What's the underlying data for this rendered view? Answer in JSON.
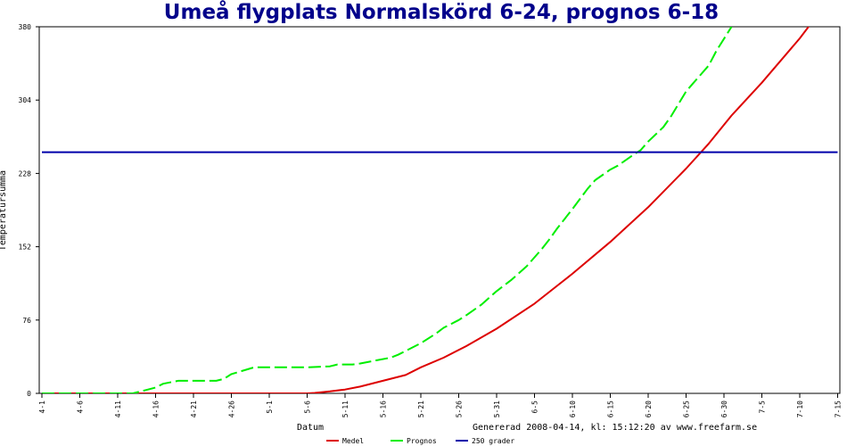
{
  "chart_data": {
    "type": "line",
    "title": "Umeå flygplats Normalskörd 6-24, prognos 6-18",
    "xlabel": "Datum",
    "ylabel": "Temperatursumma",
    "footer": "Genererad 2008-04-14, kl: 15:12:20 av www.freefarm.se",
    "ylim": [
      0,
      380
    ],
    "yticks": [
      "0",
      "76",
      "152",
      "228",
      "304",
      "380"
    ],
    "xticks": [
      "4-1",
      "4-6",
      "4-11",
      "4-16",
      "4-21",
      "4-26",
      "5-1",
      "5-6",
      "5-11",
      "5-16",
      "5-21",
      "5-26",
      "5-31",
      "6-5",
      "6-10",
      "6-15",
      "6-20",
      "6-25",
      "6-30",
      "7-5",
      "7-10",
      "7-15"
    ],
    "x_day_range": [
      0,
      105
    ],
    "grid": false,
    "legend_position": "bottom",
    "series": [
      {
        "name": "Medel",
        "color": "#dd0000",
        "style": "solid",
        "x": [
          0,
          12,
          20,
          30,
          35,
          36,
          38,
          40,
          42,
          45,
          48,
          50,
          53,
          56,
          60,
          65,
          70,
          75,
          80,
          85,
          88,
          91,
          95,
          100,
          103,
          105
        ],
        "values": [
          0,
          0,
          0,
          0,
          0,
          0.5,
          2,
          4,
          7,
          13,
          19,
          27,
          37,
          49,
          67,
          93,
          124,
          157,
          193,
          233,
          259,
          288,
          322,
          368,
          399,
          420
        ]
      },
      {
        "name": "Prognos",
        "color": "#00ee00",
        "style": "dashed",
        "x": [
          0,
          12,
          12.5,
          14,
          15,
          16,
          18,
          20,
          22,
          23,
          24,
          25,
          28,
          30,
          35,
          38,
          39,
          40,
          41,
          42,
          44,
          46,
          47,
          48,
          50,
          52,
          53,
          55,
          56,
          58,
          60,
          62,
          64,
          65,
          66,
          67,
          68,
          69,
          70,
          72,
          73,
          75,
          76,
          78,
          79,
          80,
          82,
          83,
          85,
          86,
          88,
          89,
          91
        ],
        "values": [
          0,
          0,
          1,
          4,
          6,
          10,
          13,
          13,
          13,
          13,
          15,
          20,
          27,
          27,
          27,
          28,
          30,
          30,
          30,
          31,
          34,
          37,
          40,
          44,
          52,
          62,
          68,
          76,
          81,
          92,
          106,
          118,
          132,
          141,
          150,
          160,
          171,
          181,
          191,
          212,
          221,
          232,
          236,
          247,
          252,
          261,
          276,
          287,
          313,
          322,
          340,
          355,
          380
        ]
      },
      {
        "name": "250 grader",
        "color": "#0000aa",
        "style": "solid",
        "x": [
          0,
          105
        ],
        "values": [
          250,
          250
        ]
      }
    ]
  }
}
